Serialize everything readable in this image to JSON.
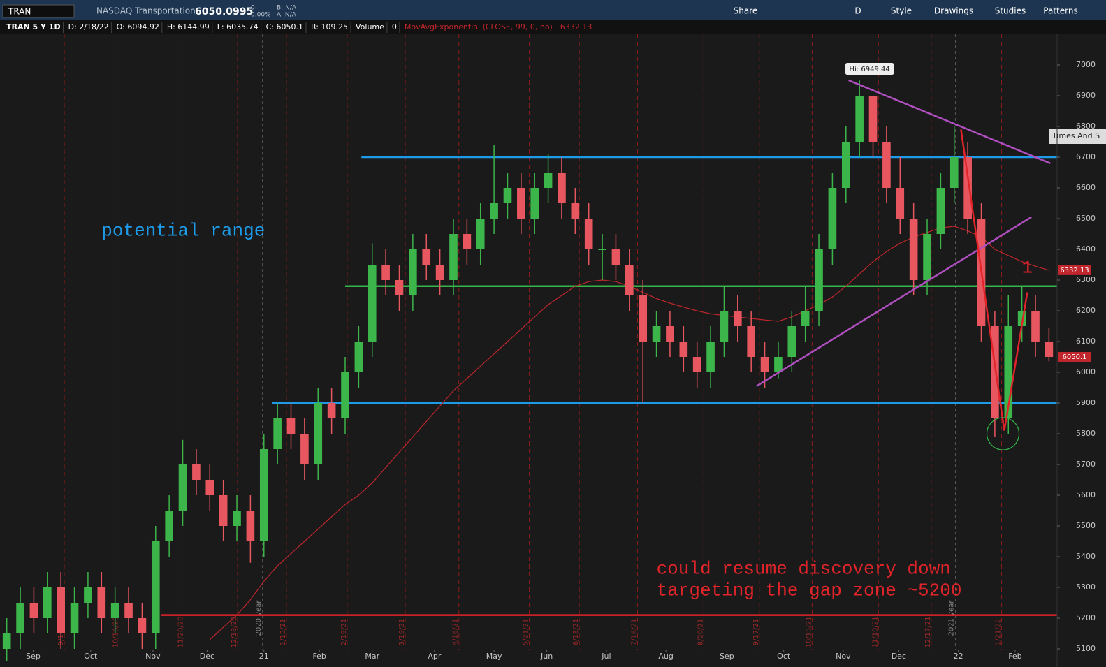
{
  "header": {
    "symbol": "TRAN",
    "name": "NASDAQ Transportation",
    "last": "6050.0995",
    "change": "0",
    "change_pct": "0.00%",
    "bid": "B: N/A",
    "ask": "A: N/A",
    "tools": [
      "Share",
      "D",
      "Style",
      "Drawings",
      "Studies",
      "Patterns"
    ],
    "info": [
      "TRAN 5 Y 1D",
      "D: 2/18/22",
      "O: 6094.92",
      "H: 6144.99",
      "L: 6035.74",
      "C: 6050.1",
      "R: 109.25",
      "Volume",
      "0"
    ],
    "study": "MovAvgExponential (CLOSE, 99, 0, no)",
    "side_tab": "Times And S"
  },
  "chart_data": {
    "type": "candlestick",
    "open": [
      5100,
      5150,
      5250,
      5200,
      5300,
      5150,
      5250,
      5300,
      5200,
      5250,
      5200,
      5150,
      5450,
      5550,
      5700,
      5650,
      5600,
      5500,
      5550,
      5450,
      5750,
      5850,
      5800,
      5700,
      5900,
      5850,
      6000,
      6100,
      6350,
      6300,
      6250,
      6400,
      6350,
      6300,
      6450,
      6400,
      6500,
      6550,
      6600,
      6500,
      6600,
      6650,
      6550,
      6500,
      6400,
      6400,
      6350,
      6250,
      6100,
      6150,
      6100,
      6050,
      6000,
      6100,
      6200,
      6150,
      6050,
      6000,
      6050,
      6150,
      6200,
      6400,
      6600,
      6750,
      6900,
      6750,
      6600,
      6500,
      6300,
      6450,
      6600,
      6700,
      6500,
      6150,
      5850,
      6150,
      6200,
      6100
    ],
    "high": [
      5200,
      5300,
      5300,
      5350,
      5350,
      5300,
      5350,
      5350,
      5300,
      5300,
      5250,
      5500,
      5600,
      5780,
      5750,
      5700,
      5650,
      5600,
      5600,
      5800,
      5900,
      5900,
      5850,
      5950,
      5950,
      6050,
      6150,
      6420,
      6400,
      6350,
      6450,
      6450,
      6400,
      6500,
      6500,
      6550,
      6740,
      6650,
      6650,
      6650,
      6710,
      6700,
      6600,
      6550,
      6450,
      6450,
      6400,
      6300,
      6200,
      6200,
      6150,
      6100,
      6150,
      6280,
      6250,
      6200,
      6100,
      6100,
      6200,
      6280,
      6450,
      6650,
      6800,
      6949.44,
      6900,
      6800,
      6700,
      6550,
      6500,
      6650,
      6800,
      6750,
      6550,
      6200,
      6250,
      6280,
      6250,
      6144.99
    ],
    "low": [
      5050,
      5100,
      5150,
      5150,
      5100,
      5100,
      5200,
      5150,
      5150,
      5150,
      5100,
      5100,
      5400,
      5500,
      5600,
      5550,
      5450,
      5450,
      5380,
      5400,
      5700,
      5750,
      5650,
      5650,
      5800,
      5800,
      5950,
      6050,
      6250,
      6200,
      6200,
      6300,
      6250,
      6250,
      6350,
      6350,
      6450,
      6500,
      6450,
      6450,
      6550,
      6500,
      6450,
      6350,
      6300,
      6300,
      6200,
      5900,
      6050,
      6050,
      6000,
      5950,
      5950,
      6050,
      6100,
      6000,
      5950,
      5980,
      6000,
      6100,
      6150,
      6350,
      6550,
      6700,
      6700,
      6550,
      6450,
      6250,
      6250,
      6400,
      6550,
      6450,
      6100,
      5790,
      5800,
      6100,
      6050,
      6035.74
    ],
    "close": [
      5150,
      5250,
      5200,
      5300,
      5150,
      5250,
      5300,
      5200,
      5250,
      5200,
      5150,
      5450,
      5550,
      5700,
      5650,
      5600,
      5500,
      5550,
      5450,
      5750,
      5850,
      5800,
      5700,
      5900,
      5850,
      6000,
      6100,
      6350,
      6300,
      6250,
      6400,
      6350,
      6300,
      6450,
      6400,
      6500,
      6550,
      6600,
      6500,
      6600,
      6650,
      6550,
      6500,
      6400,
      6400,
      6350,
      6250,
      6100,
      6150,
      6100,
      6050,
      6000,
      6100,
      6200,
      6150,
      6050,
      6000,
      6050,
      6150,
      6200,
      6400,
      6600,
      6750,
      6900,
      6750,
      6600,
      6500,
      6300,
      6450,
      6600,
      6700,
      6500,
      6150,
      5850,
      6150,
      6200,
      6100,
      6050.1
    ],
    "ema": [
      null,
      null,
      null,
      null,
      null,
      null,
      null,
      null,
      null,
      null,
      null,
      null,
      null,
      null,
      null,
      5130,
      5170,
      5210,
      5260,
      5320,
      5370,
      5410,
      5450,
      5490,
      5530,
      5570,
      5600,
      5640,
      5690,
      5740,
      5790,
      5840,
      5890,
      5940,
      5980,
      6020,
      6060,
      6100,
      6140,
      6180,
      6220,
      6250,
      6280,
      6295,
      6300,
      6295,
      6280,
      6260,
      6240,
      6225,
      6212,
      6200,
      6190,
      6185,
      6180,
      6175,
      6170,
      6166,
      6180,
      6200,
      6220,
      6245,
      6280,
      6320,
      6360,
      6393,
      6420,
      6440,
      6455,
      6470,
      6475,
      6460,
      6440,
      6400,
      6380,
      6360,
      6345,
      6332.13
    ],
    "up_color": "#3cb54a",
    "down_color": "#e8575f",
    "ema_color": "#c0262c",
    "xlim": [
      -0.5,
      77.6
    ],
    "ylim": [
      5060,
      7100
    ],
    "yticks": [
      5100,
      5200,
      5300,
      5400,
      5500,
      5600,
      5700,
      5800,
      5900,
      6000,
      6100,
      6200,
      6300,
      6400,
      6500,
      6600,
      6700,
      6800,
      6900,
      7000
    ],
    "xticks": [
      {
        "value": 1.95,
        "label": "Sep"
      },
      {
        "value": 6.2,
        "label": "Oct"
      },
      {
        "value": 10.8,
        "label": "Nov"
      },
      {
        "value": 14.8,
        "label": "Dec"
      },
      {
        "value": 19.0,
        "label": "21"
      },
      {
        "value": 23.1,
        "label": "Feb"
      },
      {
        "value": 27.0,
        "label": "Mar"
      },
      {
        "value": 31.6,
        "label": "Apr"
      },
      {
        "value": 36.0,
        "label": "May"
      },
      {
        "value": 39.9,
        "label": "Jun"
      },
      {
        "value": 44.3,
        "label": "Jul"
      },
      {
        "value": 48.7,
        "label": "Aug"
      },
      {
        "value": 53.2,
        "label": "Sep"
      },
      {
        "value": 57.4,
        "label": "Oct"
      },
      {
        "value": 61.8,
        "label": "Nov"
      },
      {
        "value": 65.9,
        "label": "Dec"
      },
      {
        "value": 70.3,
        "label": "22"
      },
      {
        "value": 74.5,
        "label": "Feb"
      }
    ],
    "expirations": [
      {
        "value": 4.25,
        "label": "9/18/20"
      },
      {
        "value": 8.3,
        "label": "10/16/20"
      },
      {
        "value": 13.1,
        "label": "11/20/20"
      },
      {
        "value": 17.05,
        "label": "12/18/20"
      },
      {
        "value": 20.66,
        "label": "1/15/21"
      },
      {
        "value": 25.15,
        "label": "2/19/21"
      },
      {
        "value": 29.44,
        "label": "3/19/21"
      },
      {
        "value": 33.4,
        "label": "4/16/21"
      },
      {
        "value": 38.6,
        "label": "5/21/21"
      },
      {
        "value": 42.3,
        "label": "6/18/21"
      },
      {
        "value": 46.6,
        "label": "7/16/21"
      },
      {
        "value": 51.5,
        "label": "8/20/21"
      },
      {
        "value": 55.6,
        "label": "9/17/21"
      },
      {
        "value": 59.5,
        "label": "10/15/21"
      },
      {
        "value": 64.4,
        "label": "11/19/21"
      },
      {
        "value": 68.3,
        "label": "12/17/21"
      },
      {
        "value": 73.5,
        "label": "1/21/22"
      }
    ],
    "year_lines": [
      {
        "value": 18.9,
        "label": "2020 year"
      },
      {
        "value": 70.1,
        "label": "2021 year"
      }
    ],
    "hlines": [
      {
        "value": 6700,
        "from": 26.2,
        "color": "#1e9be8"
      },
      {
        "value": 6280,
        "from": 25.0,
        "color": "#35b44a"
      },
      {
        "value": 5900,
        "from": 19.6,
        "color": "#1e9be8"
      },
      {
        "value": 5210,
        "from": 11.4,
        "color": "#e0242a"
      }
    ],
    "trendlines": [
      {
        "points": [
          [
            62.2,
            6950
          ],
          [
            77.1,
            6680
          ]
        ],
        "color": "#b04fc0"
      },
      {
        "points": [
          [
            55.4,
            5955
          ],
          [
            75.7,
            6505
          ]
        ],
        "color": "#b04fc0"
      },
      {
        "points": [
          [
            70.5,
            6790
          ],
          [
            73.7,
            5810
          ],
          [
            75.4,
            6260
          ]
        ],
        "color": "#e0242a"
      }
    ],
    "circle": {
      "x": 73.6,
      "y": 5800,
      "color": "#35b44a"
    },
    "high_label": "Hi: 6949.44",
    "annotations": [
      {
        "text": "potential range",
        "x": 7.0,
        "y": 6460,
        "color": "#1e9be8"
      },
      {
        "text": "could resume discovery down",
        "x": 48.0,
        "y": 5360,
        "color": "#e0242a"
      },
      {
        "text": "targeting the gap zone ~5200",
        "x": 48.0,
        "y": 5290,
        "color": "#e0242a"
      },
      {
        "text": "1",
        "x": 75.0,
        "y": 6340,
        "color": "#e0242a"
      }
    ]
  }
}
